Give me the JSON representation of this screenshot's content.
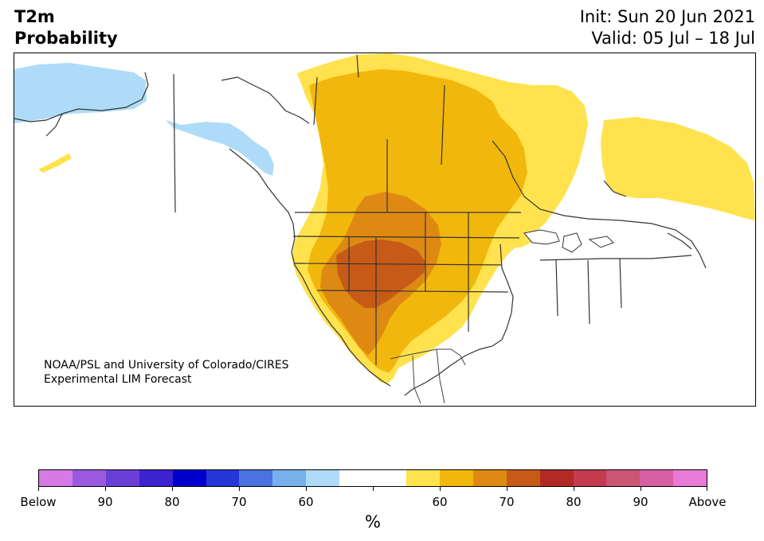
{
  "header": {
    "title_line1": "T2m",
    "title_line2": "Probability",
    "init_text": "Init: Sun 20 Jun 2021",
    "valid_text": "Valid: 05 Jul – 18 Jul"
  },
  "credit": {
    "line1": "NOAA/PSL and University of Colorado/CIRES",
    "line2": "Experimental LIM Forecast"
  },
  "colorbar": {
    "unit": "%",
    "segments": [
      "#d67ae8",
      "#9b59e0",
      "#6a3fd8",
      "#3d22d0",
      "#0000cc",
      "#2436d8",
      "#4a72e0",
      "#78b0ee",
      "#aedcf8",
      "#ffffff",
      "#ffffff",
      "#ffe24d",
      "#f2b70c",
      "#de8a12",
      "#c85a18",
      "#b22a22",
      "#c23c4e",
      "#cc5475",
      "#d85ea6",
      "#e87ad8"
    ],
    "tick_labels": [
      "Below",
      "90",
      "80",
      "70",
      "60",
      "",
      "60",
      "70",
      "80",
      "90",
      "Above"
    ]
  },
  "map": {
    "region": "North America",
    "legend_colors": {
      "light_blue": "#aedcf8",
      "yellow": "#ffe24d",
      "gold": "#f2b70c",
      "orange": "#de8a12",
      "dark_orange": "#c85a18"
    }
  }
}
